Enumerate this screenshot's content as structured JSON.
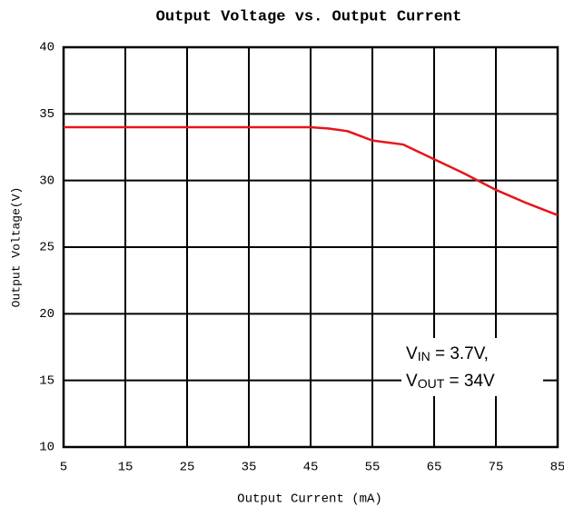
{
  "chart_data": {
    "type": "line",
    "title": "Output Voltage vs. Output Current",
    "x_label": "Output Current (mA)",
    "y_label": "Output Voltage(V)",
    "x": [
      5,
      15,
      25,
      35,
      45,
      48,
      51,
      55,
      60,
      65,
      70,
      75,
      80,
      85
    ],
    "series": [
      {
        "name": "Output Voltage",
        "color": "#e8141b",
        "values": [
          34,
          34,
          34,
          34,
          34,
          33.9,
          33.7,
          33.0,
          32.7,
          31.6,
          30.5,
          29.3,
          28.3,
          27.4
        ]
      }
    ],
    "xlim": [
      5,
      85
    ],
    "xticks": [
      5,
      15,
      25,
      35,
      45,
      55,
      65,
      75,
      85
    ],
    "ylim": [
      10,
      40
    ],
    "yticks": [
      10,
      15,
      20,
      25,
      30,
      35,
      40
    ],
    "grid": true,
    "annotations": [
      {
        "main": "V",
        "sub": "IN",
        "rest": " = 3.7V,"
      },
      {
        "main": "V",
        "sub": "OUT",
        "rest": " = 34V"
      }
    ]
  }
}
